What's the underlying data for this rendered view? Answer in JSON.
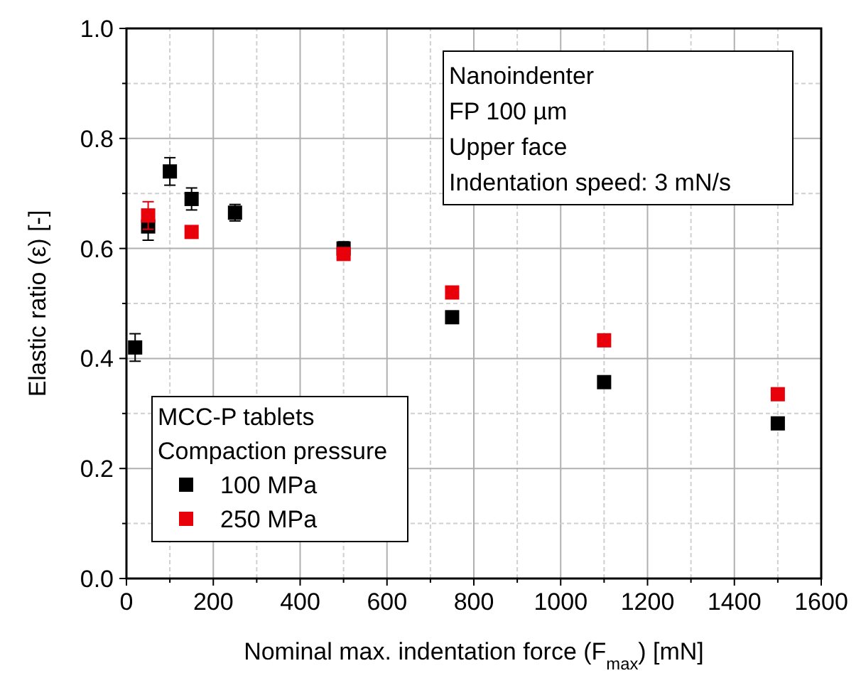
{
  "chart_data": {
    "type": "scatter",
    "xlabel": "Nominal max. indentation force (F$_{max}$) [mN]",
    "ylabel": "Elastic ratio (ε) [-]",
    "legend_title": "MCC-P tablets\nCompaction pressure",
    "legend": "bottom left",
    "grid": true,
    "marker": "square",
    "annotations": [
      "Nanoindenter",
      "FP 100 µm",
      "Upper face",
      "Indentation speed: 3 mN/s"
    ],
    "xlim": [
      0,
      1600
    ],
    "xticks": [
      0,
      {
        "value": 100,
        "label": null
      },
      200,
      {
        "value": 300,
        "label": null
      },
      400,
      {
        "value": 500,
        "label": null
      },
      600,
      {
        "value": 700,
        "label": null
      },
      800,
      {
        "value": 900,
        "label": null
      },
      1000,
      {
        "value": 1100,
        "label": null
      },
      1200,
      {
        "value": 1300,
        "label": null
      },
      1400,
      {
        "value": 1500,
        "label": null
      },
      1600
    ],
    "ylim": [
      0,
      1
    ],
    "yticks": [
      {
        "value": 0,
        "label": "0.0"
      },
      {
        "value": 0.1,
        "label": null
      },
      0.2,
      {
        "value": 0.3,
        "label": null
      },
      0.4,
      {
        "value": 0.5,
        "label": null
      },
      0.6,
      {
        "value": 0.7,
        "label": null
      },
      0.8,
      {
        "value": 0.9,
        "label": null
      },
      {
        "value": 1,
        "label": "1.0"
      }
    ],
    "series": [
      {
        "name": "100 MPa",
        "color": "#000000",
        "x": [
          20,
          50,
          100,
          150,
          250,
          500,
          750,
          1100,
          1500
        ],
        "values": [
          0.42,
          0.64,
          0.74,
          0.69,
          0.665,
          0.6,
          0.475,
          0.357,
          0.282
        ],
        "errors": [
          0.025,
          0.025,
          0.025,
          0.02,
          0.015,
          0.012,
          null,
          null,
          null
        ]
      },
      {
        "name": "250 MPa",
        "color": "#e8000b",
        "x": [
          50,
          150,
          500,
          750,
          1100,
          1500
        ],
        "values": [
          0.66,
          0.63,
          0.59,
          0.52,
          0.433,
          0.335
        ],
        "errors": [
          0.025,
          0.01,
          null,
          null,
          null,
          null
        ]
      }
    ]
  }
}
